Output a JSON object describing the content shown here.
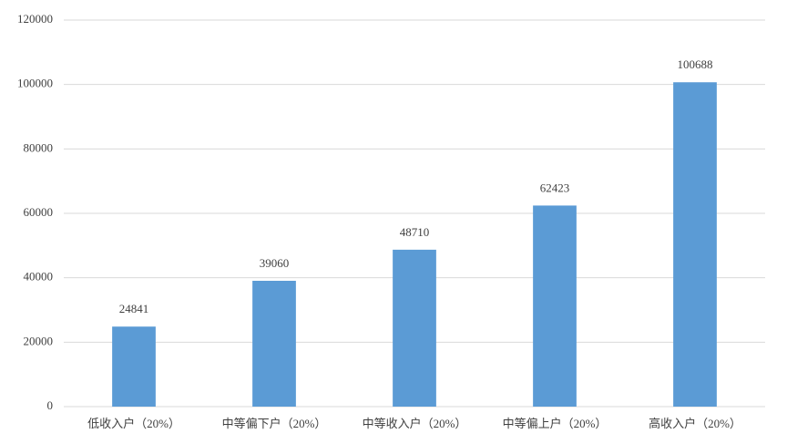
{
  "chart_data": {
    "type": "bar",
    "categories": [
      "低收入户（20%）",
      "中等偏下户（20%）",
      "中等收入户（20%）",
      "中等偏上户（20%）",
      "高收入户（20%）"
    ],
    "values": [
      24841,
      39060,
      48710,
      62423,
      100688
    ],
    "color": "#5b9bd5",
    "ylim": [
      0,
      120000
    ],
    "yticks": [
      0,
      20000,
      40000,
      60000,
      80000,
      100000,
      120000
    ],
    "grid": true
  }
}
